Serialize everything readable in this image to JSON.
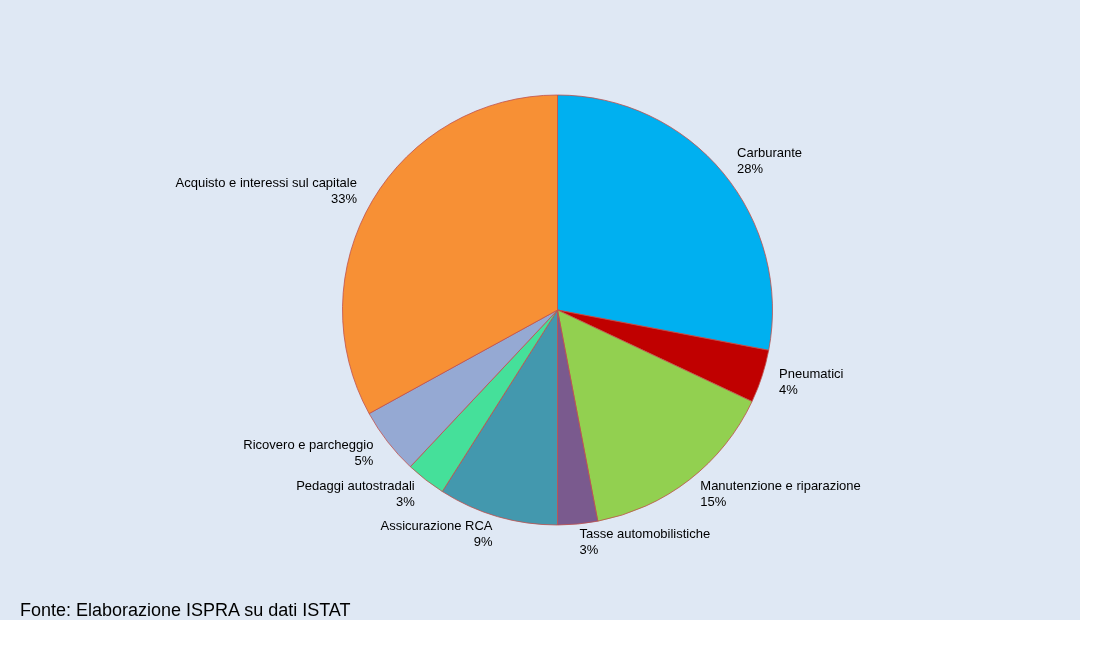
{
  "chart_data": {
    "type": "pie",
    "categories": [
      "Carburante",
      "Pneumatici",
      "Manutenzione e riparazione",
      "Tasse automobilistiche",
      "Assicurazione RCA",
      "Pedaggi autostradali",
      "Ricovero e parcheggio",
      "Acquisto e interessi sul capitale"
    ],
    "values": [
      28,
      4,
      15,
      3,
      9,
      3,
      5,
      33
    ],
    "value_labels": [
      "28%",
      "4%",
      "15%",
      "3%",
      "9%",
      "3%",
      "5%",
      "33%"
    ],
    "colors": [
      "#00b0f0",
      "#c00000",
      "#92d050",
      "#7a5a8e",
      "#4398ae",
      "#45e09a",
      "#95a9d3",
      "#f79035"
    ],
    "legend": false,
    "annotations": [
      "Fonte: Elaborazione ISPRA su dati ISTAT"
    ]
  }
}
